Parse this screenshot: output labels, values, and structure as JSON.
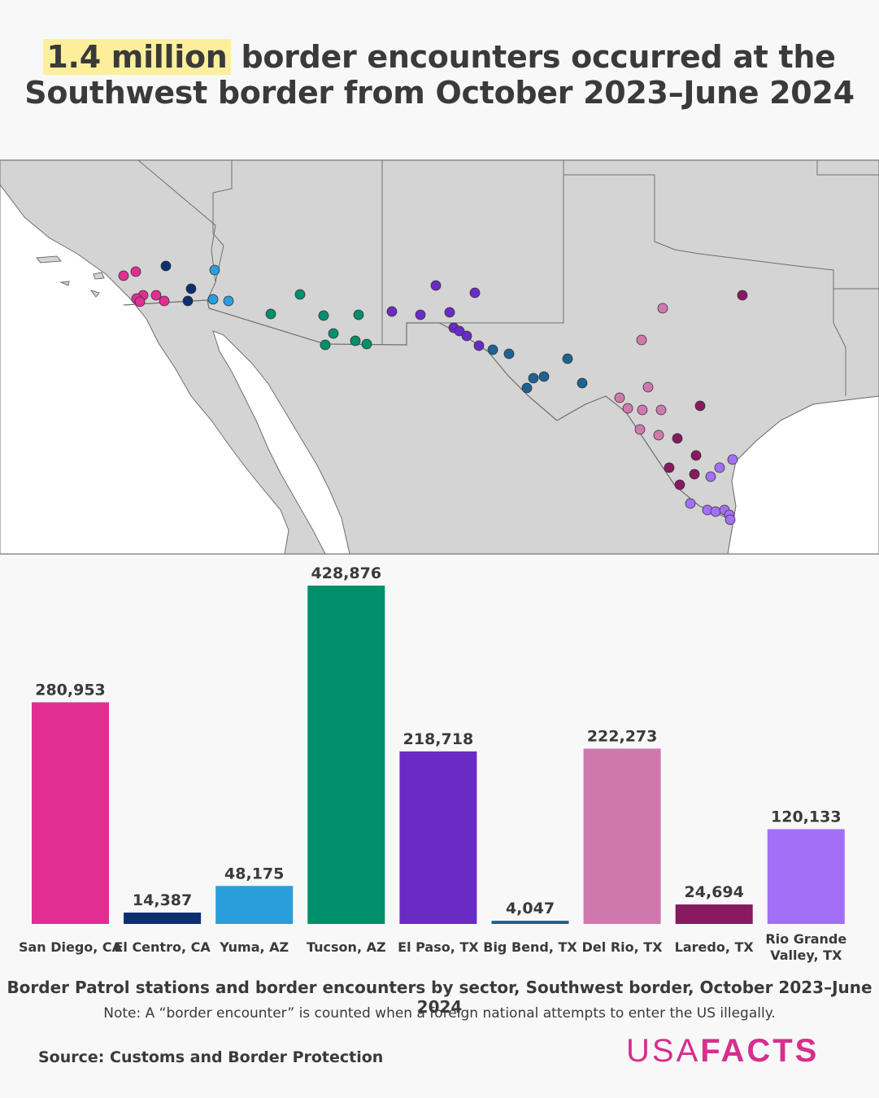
{
  "title": {
    "highlight": "1.4 million",
    "line1_rest": " border encounters occurred at the",
    "line2": "Southwest border from October 2023–June 2024"
  },
  "colors": {
    "San Diego, CA": "#e22d93",
    "El Centro, CA": "#0d2f6e",
    "Yuma, AZ": "#2a9ddb",
    "Tucson, AZ": "#008f6b",
    "El Paso, TX": "#6a2bc5",
    "Big Bend, TX": "#1d6291",
    "Del Rio, TX": "#cf78ae",
    "Laredo, TX": "#87195f",
    "Rio Grande Valley, TX": "#a46ff7"
  },
  "chart_data": {
    "type": "bar",
    "categories": [
      "San Diego, CA",
      "El Centro, CA",
      "Yuma, AZ",
      "Tucson, AZ",
      "El Paso, TX",
      "Big Bend, TX",
      "Del Rio, TX",
      "Laredo, TX",
      "Rio Grande Valley, TX"
    ],
    "tick_labels": [
      [
        "San Diego, CA"
      ],
      [
        "El Centro, CA"
      ],
      [
        "Yuma, AZ"
      ],
      [
        "Tucson, AZ"
      ],
      [
        "El Paso, TX"
      ],
      [
        "Big Bend, TX"
      ],
      [
        "Del Rio, TX"
      ],
      [
        "Laredo, TX"
      ],
      [
        "Rio Grande",
        "Valley, TX"
      ]
    ],
    "values": [
      280953,
      14387,
      48175,
      428876,
      218718,
      4047,
      222273,
      24694,
      120133
    ],
    "value_labels": [
      "280,953",
      "14,387",
      "48,175",
      "428,876",
      "218,718",
      "4,047",
      "222,273",
      "24,694",
      "120,133"
    ],
    "ylim": [
      0,
      428876
    ],
    "grid": false,
    "legend": "none"
  },
  "caption": "Border Patrol stations and border encounters by sector, Southwest border, October 2023–June 2024",
  "note": "Note: A “border encounter” is counted when a foreign national attempts to enter the US illegally.",
  "source": "Source: Customs and Border Protection",
  "logo": {
    "thin": "USA",
    "bold": "FACTS"
  }
}
